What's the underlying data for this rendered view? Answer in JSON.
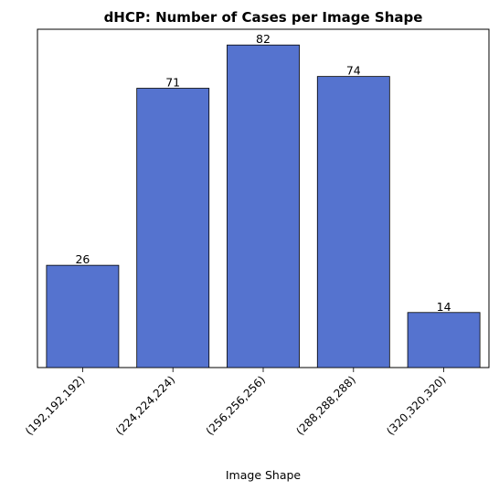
{
  "chart_data": {
    "type": "bar",
    "title": "dHCP: Number of Cases per Image Shape",
    "xlabel": "Image Shape",
    "ylabel": "",
    "categories": [
      "(192,192,192)",
      "(224,224,224)",
      "(256,256,256)",
      "(288,288,288)",
      "(320,320,320)"
    ],
    "values": [
      26,
      71,
      82,
      74,
      14
    ],
    "ylim": [
      0,
      86
    ],
    "y_axis_ticks_shown": false,
    "grid": false,
    "legend": "none",
    "bar_color": "#5573cf",
    "bar_edge_color": "#000000"
  }
}
